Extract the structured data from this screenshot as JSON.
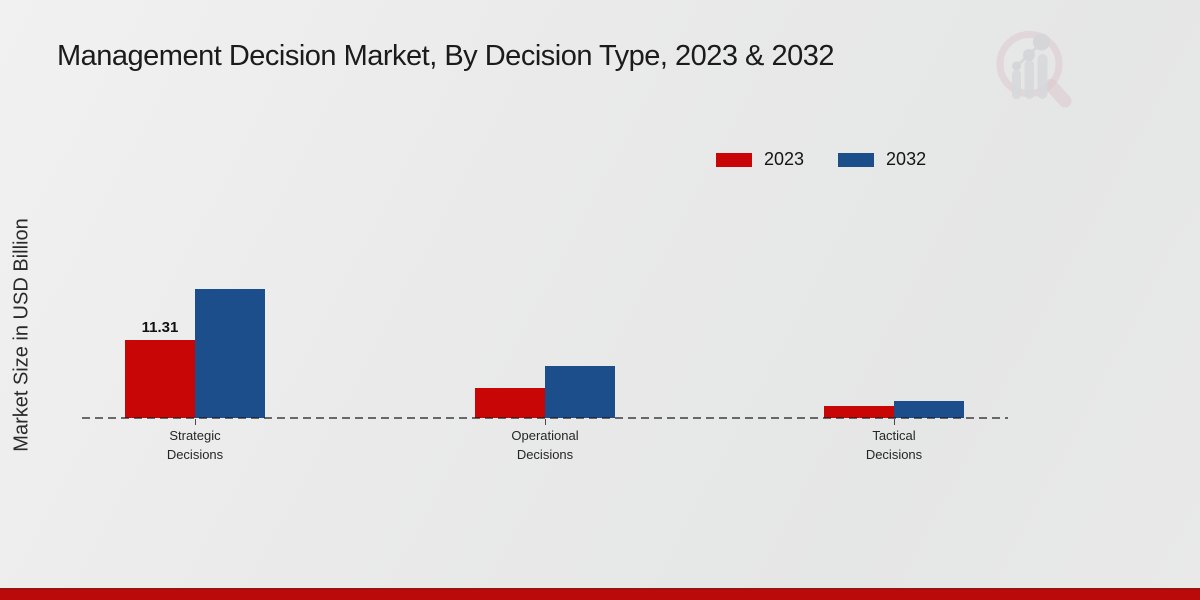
{
  "title": "Management Decision Market, By Decision Type, 2023 & 2032",
  "y_axis_label": "Market Size in USD Billion",
  "colors": {
    "series_2023": "#c90606",
    "series_2032": "#1b4e8b",
    "background": "#e9e9e9",
    "footer_bar": "#ba0a0a",
    "title_text": "#1b1b1b"
  },
  "branding": {
    "logo_name": "magnifier-bar-chart-logo"
  },
  "chart_data": {
    "type": "bar",
    "title": "Management Decision Market, By Decision Type, 2023 & 2032",
    "xlabel": "",
    "ylabel": "Market Size in USD Billion",
    "categories": [
      "Strategic Decisions",
      "Operational Decisions",
      "Tactical Decisions"
    ],
    "series": [
      {
        "name": "2023",
        "color": "#c90606",
        "values": [
          11.31,
          4.3,
          1.8
        ]
      },
      {
        "name": "2032",
        "color": "#1b4e8b",
        "values": [
          18.7,
          7.6,
          2.4
        ]
      }
    ],
    "bar_labels": [
      {
        "series_index": 0,
        "category_index": 0,
        "text": "11.31"
      }
    ],
    "ylim": [
      0,
      25
    ],
    "grid": false,
    "y_axis_ticks_visible": false,
    "baseline_style": "dashed",
    "legend_position": "top-right"
  }
}
